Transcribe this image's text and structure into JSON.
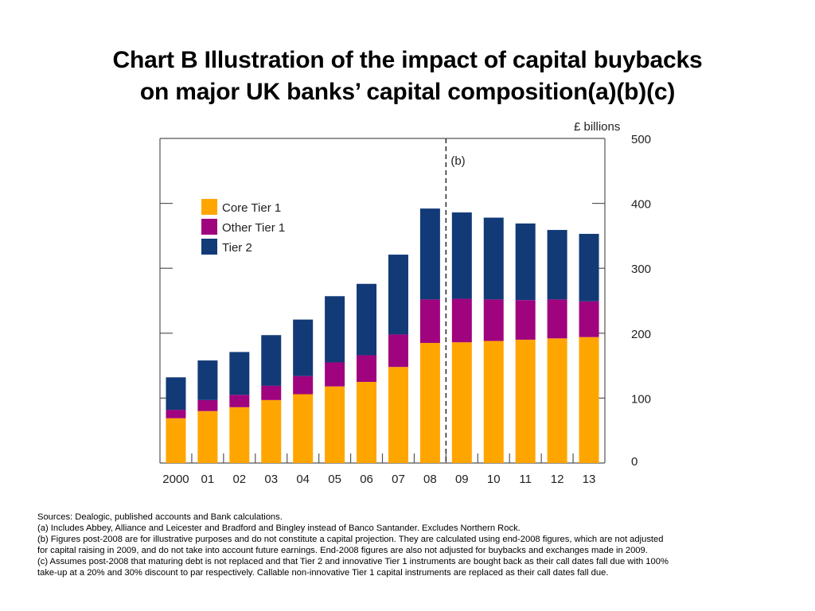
{
  "title_line1": "Chart B  Illustration of the impact of capital buybacks",
  "title_line2": "on major UK banks’ capital composition(a)(b)(c)",
  "chart_data": {
    "type": "bar",
    "stacked": true,
    "categories": [
      "2000",
      "01",
      "02",
      "03",
      "04",
      "05",
      "06",
      "07",
      "08",
      "09",
      "10",
      "11",
      "12",
      "13"
    ],
    "series": [
      {
        "name": "Core Tier 1",
        "color": "#FFA500",
        "values": [
          69,
          80,
          86,
          97,
          106,
          118,
          125,
          148,
          185,
          186,
          188,
          190,
          192,
          194
        ]
      },
      {
        "name": "Other Tier 1",
        "color": "#A0037E",
        "values": [
          13,
          17,
          19,
          22,
          28,
          37,
          41,
          50,
          67,
          67,
          64,
          61,
          60,
          55
        ]
      },
      {
        "name": "Tier 2",
        "color": "#123A77",
        "values": [
          50,
          61,
          66,
          78,
          87,
          102,
          110,
          123,
          140,
          133,
          126,
          118,
          107,
          104
        ]
      }
    ],
    "unit_label": "£ billions",
    "ylim": [
      0,
      500
    ],
    "yticks": [
      "0",
      "100",
      "200",
      "300",
      "400",
      "500"
    ],
    "y_axis_side": "right",
    "legend_position": "upper-left",
    "marker_line": {
      "between": [
        "08",
        "09"
      ],
      "label": "(b)",
      "style": "dashed"
    },
    "grid": false
  },
  "notes": [
    "Sources:  Dealogic, published accounts and Bank calculations.",
    "(a) Includes Abbey, Alliance and Leicester and Bradford and Bingley instead of Banco Santander.  Excludes Northern Rock.",
    "(b) Figures post-2008 are for illustrative purposes and do not constitute a capital projection.  They are calculated using end-2008 figures, which are not adjusted",
    "for capital raising in 2009, and do not take into account future earnings.  End-2008 figures are also not adjusted for buybacks and exchanges made in 2009.",
    "(c) Assumes post-2008 that maturing debt is not replaced and that Tier 2 and innovative Tier 1 instruments are bought back as their call dates fall due with 100%",
    "take-up at a 20% and 30% discount to par respectively.  Callable non-innovative Tier 1 capital instruments are replaced as their call dates fall due."
  ]
}
